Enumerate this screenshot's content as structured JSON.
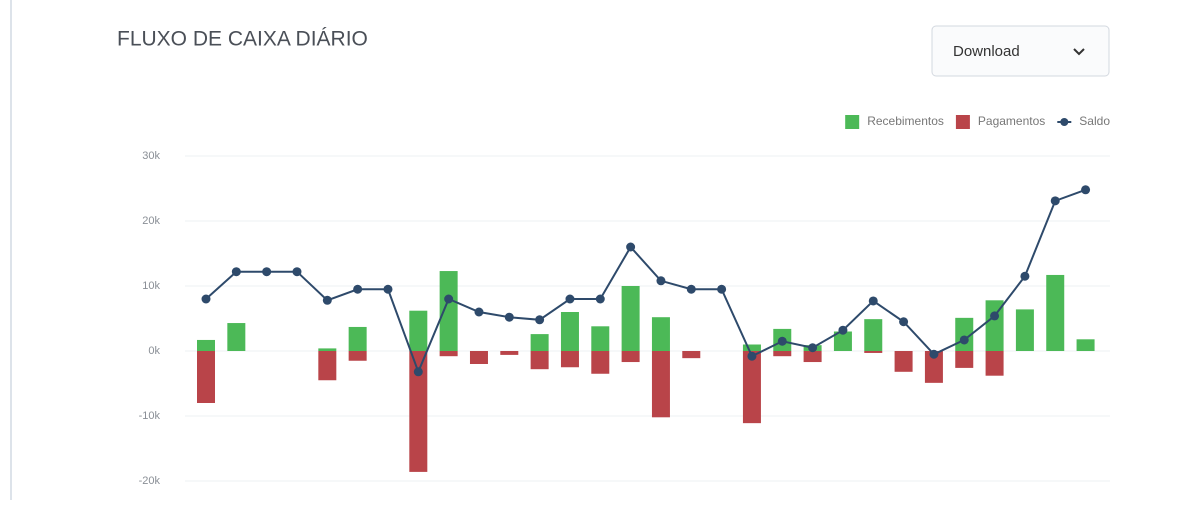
{
  "download_button": "Download",
  "chart_data": {
    "type": "bar-line",
    "title": "FLUXO DE CAIXA DIÁRIO",
    "categories": [
      null,
      null,
      null,
      null,
      null,
      null,
      null,
      null,
      null,
      null,
      null,
      null,
      null,
      null,
      null,
      null,
      null,
      null,
      null,
      null,
      null,
      null,
      null,
      null,
      null,
      null,
      null,
      null,
      null,
      null
    ],
    "series": [
      {
        "name": "Recebimentos",
        "color": "#4cb957",
        "kind": "bar",
        "values": [
          1700,
          4300,
          0,
          0,
          400,
          3700,
          0,
          6200,
          12300,
          0,
          0,
          2600,
          6000,
          3800,
          10000,
          5200,
          0,
          0,
          1000,
          3400,
          900,
          3000,
          4900,
          0,
          0,
          5100,
          7800,
          6400,
          11700,
          1800
        ]
      },
      {
        "name": "Pagamentos",
        "color": "#b94449",
        "kind": "bar",
        "values": [
          -8000,
          0,
          0,
          0,
          -4500,
          -1500,
          0,
          -18600,
          -800,
          -2000,
          -600,
          -2800,
          -2500,
          -3500,
          -1700,
          -10200,
          -1100,
          0,
          -11100,
          -800,
          -1700,
          0,
          -300,
          -3200,
          -4900,
          -2600,
          -3800,
          0,
          0,
          0
        ]
      },
      {
        "name": "Saldo",
        "color": "#2e4a6b",
        "kind": "line",
        "values": [
          8000,
          12200,
          12200,
          12200,
          7800,
          9500,
          9500,
          -3200,
          8000,
          6000,
          5200,
          4800,
          8000,
          8000,
          16000,
          10800,
          9500,
          9500,
          -800,
          1500,
          500,
          3200,
          7700,
          4500,
          -500,
          1700,
          5400,
          11500,
          23100,
          24800
        ]
      }
    ],
    "ylim": [
      -20000,
      30000
    ],
    "yticks": [
      {
        "value": -20000,
        "label": "-20k"
      },
      {
        "value": -10000,
        "label": "-10k"
      },
      {
        "value": 0,
        "label": "0k"
      },
      {
        "value": 10000,
        "label": "10k"
      },
      {
        "value": 20000,
        "label": "20k"
      },
      {
        "value": 30000,
        "label": "30k"
      }
    ],
    "grid": true,
    "legend": "top-right"
  }
}
